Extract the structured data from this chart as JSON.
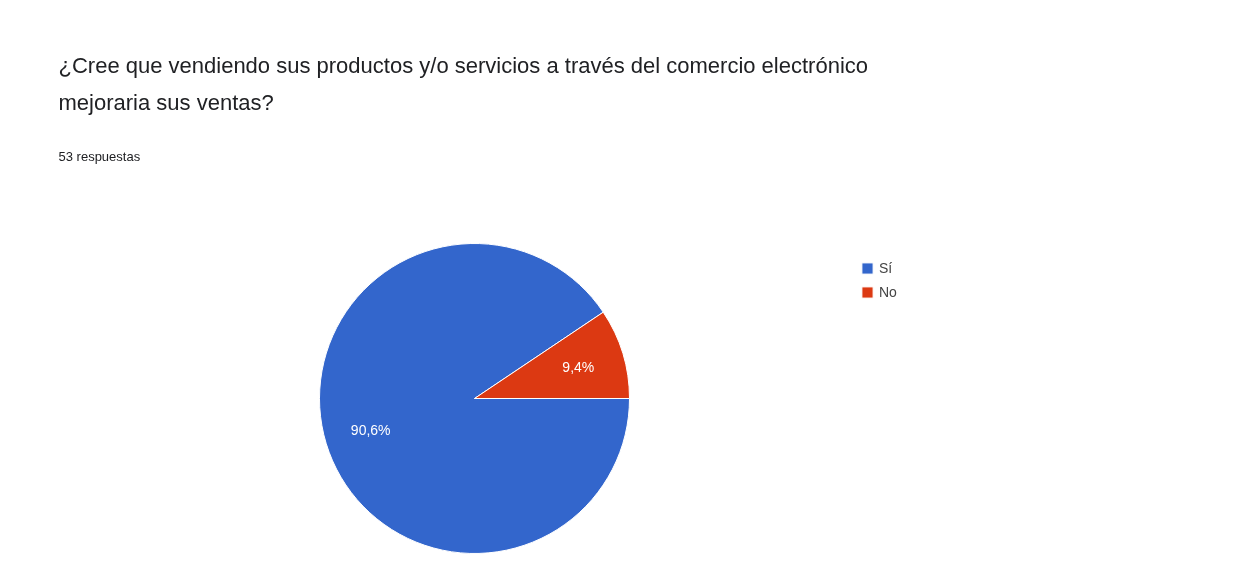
{
  "chart_data": {
    "type": "pie",
    "title": "¿Cree que vendiendo sus productos y/o servicios a través del comercio electrónico mejoraria sus ventas?",
    "subtitle": "53 respuestas",
    "categories": [
      "Sí",
      "No"
    ],
    "values": [
      90.6,
      9.4
    ],
    "colors": [
      "#3366cc",
      "#dc3912"
    ],
    "value_labels": [
      "90,6%",
      "9,4%"
    ],
    "legend": "right"
  }
}
